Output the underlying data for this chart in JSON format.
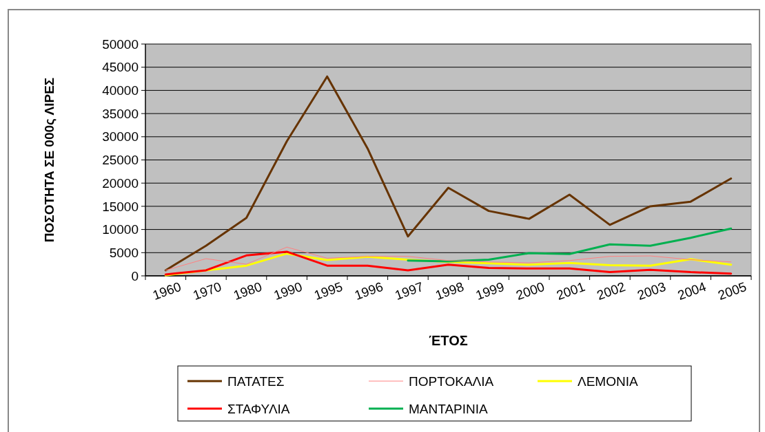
{
  "chart_data": {
    "type": "line",
    "xlabel": "ΈΤΟΣ",
    "ylabel": "ΠΟΣΟΤΗΤΑ ΣΕ 000ς ΛΙΡΕΣ",
    "categories": [
      "1960",
      "1970",
      "1980",
      "1990",
      "1995",
      "1996",
      "1997",
      "1998",
      "1999",
      "2000",
      "2001",
      "2002",
      "2003",
      "2004",
      "2005"
    ],
    "ylim": [
      0,
      50000
    ],
    "yticks": [
      0,
      5000,
      10000,
      15000,
      20000,
      25000,
      30000,
      35000,
      40000,
      45000,
      50000
    ],
    "grid": "y",
    "legend": "bottom",
    "series": [
      {
        "name": "ΠΑΤΑΤΕΣ",
        "color": "#663300",
        "values": [
          1200,
          6500,
          12500,
          29000,
          43000,
          27500,
          8500,
          19000,
          14000,
          12300,
          17500,
          11000,
          15000,
          16000,
          21000
        ]
      },
      {
        "name": "ΠΟΡΤΟΚΑΛΙΑ",
        "color": "#ff8080",
        "values": [
          1200,
          3700,
          2500,
          6200,
          3800,
          4200,
          4200,
          3300,
          3000,
          2800,
          3300,
          4200,
          4300,
          3500,
          3000
        ]
      },
      {
        "name": "ΛΕΜΟΝΙΑ",
        "color": "#ffff00",
        "values": [
          100,
          1200,
          2200,
          4800,
          3400,
          4100,
          3500,
          3000,
          2700,
          2400,
          2800,
          2300,
          2200,
          3600,
          2400
        ]
      },
      {
        "name": "ΣΤΑΦΥΛΙΑ",
        "color": "#ff0000",
        "values": [
          300,
          1200,
          4400,
          5200,
          2200,
          2200,
          1200,
          2400,
          1700,
          1600,
          1600,
          800,
          1300,
          800,
          500
        ]
      },
      {
        "name": "ΜΑΝΤΑΡΙΝΙΑ",
        "color": "#00b050",
        "values": [
          null,
          null,
          null,
          null,
          null,
          null,
          3300,
          3100,
          3500,
          4900,
          4700,
          6800,
          6500,
          8200,
          10200
        ]
      }
    ]
  }
}
